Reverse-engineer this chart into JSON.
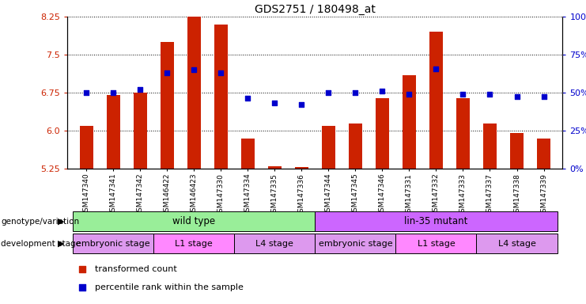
{
  "title": "GDS2751 / 180498_at",
  "samples": [
    "GSM147340",
    "GSM147341",
    "GSM147342",
    "GSM146422",
    "GSM146423",
    "GSM147330",
    "GSM147334",
    "GSM147335",
    "GSM147336",
    "GSM147344",
    "GSM147345",
    "GSM147346",
    "GSM147331",
    "GSM147332",
    "GSM147333",
    "GSM147337",
    "GSM147338",
    "GSM147339"
  ],
  "bar_values": [
    6.1,
    6.7,
    6.75,
    7.75,
    8.6,
    8.1,
    5.85,
    5.3,
    5.28,
    6.1,
    6.15,
    6.65,
    7.1,
    7.95,
    6.65,
    6.15,
    5.95,
    5.85
  ],
  "dot_values": [
    6.75,
    6.75,
    6.82,
    7.15,
    7.2,
    7.15,
    6.65,
    6.55,
    6.52,
    6.75,
    6.75,
    6.78,
    6.72,
    7.22,
    6.72,
    6.72,
    6.68,
    6.68
  ],
  "ylim_left": [
    5.25,
    8.25
  ],
  "ylim_right": [
    0,
    100
  ],
  "yticks_left": [
    5.25,
    6.0,
    6.75,
    7.5,
    8.25
  ],
  "yticks_right": [
    0,
    25,
    50,
    75,
    100
  ],
  "bar_color": "#cc2200",
  "dot_color": "#0000cc",
  "bar_bottom": 5.25,
  "genotype_groups": [
    {
      "label": "wild type",
      "start": 0,
      "end": 9,
      "color": "#99ee99"
    },
    {
      "label": "lin-35 mutant",
      "start": 9,
      "end": 18,
      "color": "#cc66ff"
    }
  ],
  "stage_groups": [
    {
      "label": "embryonic stage",
      "start": 0,
      "end": 3,
      "color": "#dd99ee"
    },
    {
      "label": "L1 stage",
      "start": 3,
      "end": 6,
      "color": "#ff88ff"
    },
    {
      "label": "L4 stage",
      "start": 6,
      "end": 9,
      "color": "#dd99ee"
    },
    {
      "label": "embryonic stage",
      "start": 9,
      "end": 12,
      "color": "#dd99ee"
    },
    {
      "label": "L1 stage",
      "start": 12,
      "end": 15,
      "color": "#ff88ff"
    },
    {
      "label": "L4 stage",
      "start": 15,
      "end": 18,
      "color": "#dd99ee"
    }
  ],
  "legend_items": [
    {
      "label": "transformed count",
      "color": "#cc2200"
    },
    {
      "label": "percentile rank within the sample",
      "color": "#0000cc"
    }
  ],
  "grid_color": "black",
  "left_label_color": "#cc2200",
  "right_label_color": "#0000cc",
  "bg_color": "#ffffff"
}
